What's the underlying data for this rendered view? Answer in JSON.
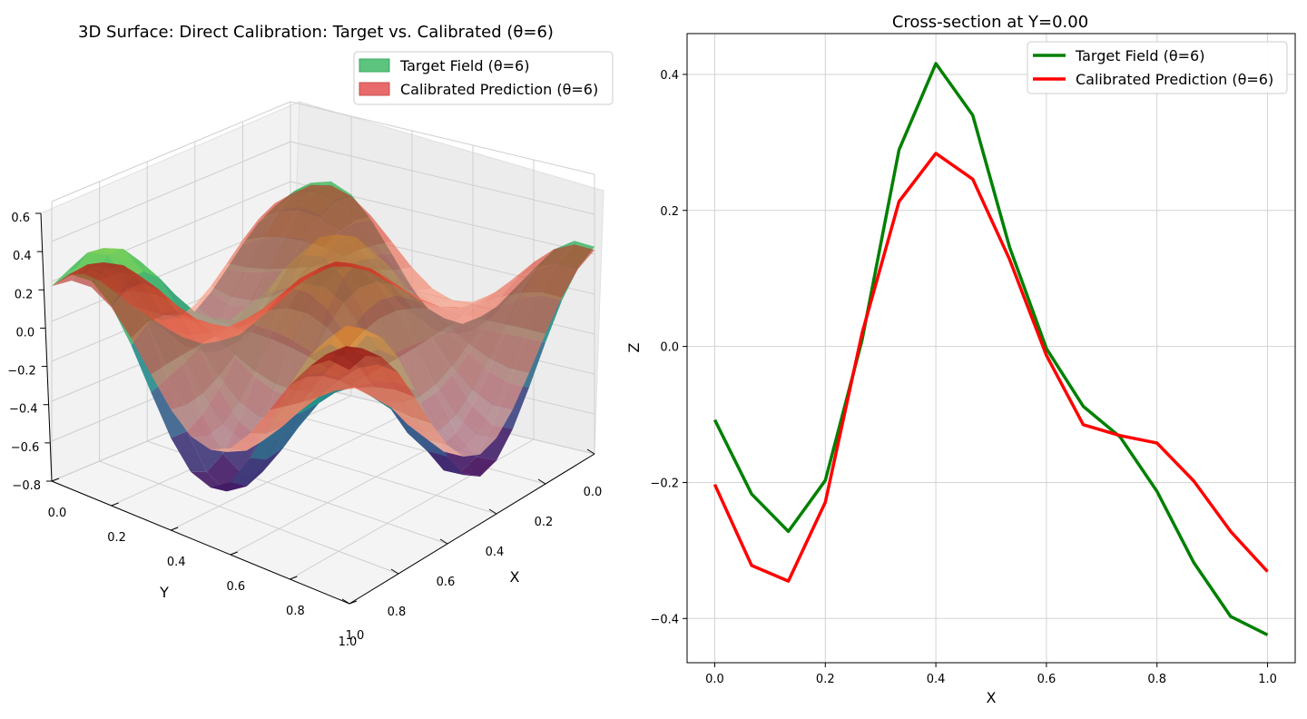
{
  "chart_data": [
    {
      "type": "surface3d",
      "title": "3D Surface: Direct Calibration: Target vs. Calibrated (θ=6)",
      "xlabel": "X",
      "ylabel": "Y",
      "zlabel": "",
      "xlim": [
        0,
        1
      ],
      "ylim": [
        0,
        1
      ],
      "zlim": [
        -0.8,
        0.6
      ],
      "x_ticks": [
        "0.0",
        "0.2",
        "0.4",
        "0.6",
        "0.8",
        "1.0"
      ],
      "y_ticks": [
        "0.0",
        "0.2",
        "0.4",
        "0.6",
        "0.8",
        "1.0"
      ],
      "z_ticks": [
        "−0.8",
        "−0.6",
        "−0.4",
        "−0.2",
        "0.0",
        "0.2",
        "0.4",
        "0.6"
      ],
      "legend_position": "top-right",
      "series": [
        {
          "name": "Target Field (θ=6)",
          "color": "#5cc47f"
        },
        {
          "name": "Calibrated Prediction (θ=6)",
          "color": "#e86a6a"
        }
      ],
      "grid": true
    },
    {
      "type": "line",
      "title": "Cross-section at Y=0.00",
      "xlabel": "X",
      "ylabel": "Z",
      "xlim": [
        -0.05,
        1.05
      ],
      "ylim": [
        -0.465,
        0.46
      ],
      "x_ticks": [
        0.0,
        0.2,
        0.4,
        0.6,
        0.8,
        1.0
      ],
      "x_tick_labels": [
        "0.0",
        "0.2",
        "0.4",
        "0.6",
        "0.8",
        "1.0"
      ],
      "y_ticks": [
        -0.4,
        -0.2,
        0.0,
        0.2,
        0.4
      ],
      "y_tick_labels": [
        "−0.4",
        "−0.2",
        "0.0",
        "0.2",
        "0.4"
      ],
      "grid": true,
      "legend_position": "top-right",
      "x": [
        0.0,
        0.0667,
        0.1333,
        0.2,
        0.2667,
        0.3333,
        0.4,
        0.4667,
        0.5333,
        0.6,
        0.6667,
        0.7333,
        0.8,
        0.8667,
        0.9333,
        1.0
      ],
      "series": [
        {
          "name": "Target Field (θ=6)",
          "color": "#008000",
          "values": [
            -0.108,
            -0.217,
            -0.272,
            -0.197,
            0.01,
            0.289,
            0.416,
            0.34,
            0.146,
            -0.003,
            -0.088,
            -0.133,
            -0.213,
            -0.318,
            -0.397,
            -0.424
          ]
        },
        {
          "name": "Calibrated Prediction (θ=6)",
          "color": "#ff0000",
          "values": [
            -0.203,
            -0.322,
            -0.345,
            -0.229,
            0.02,
            0.213,
            0.284,
            0.246,
            0.128,
            -0.013,
            -0.115,
            -0.131,
            -0.142,
            -0.198,
            -0.272,
            -0.331
          ]
        }
      ]
    }
  ]
}
